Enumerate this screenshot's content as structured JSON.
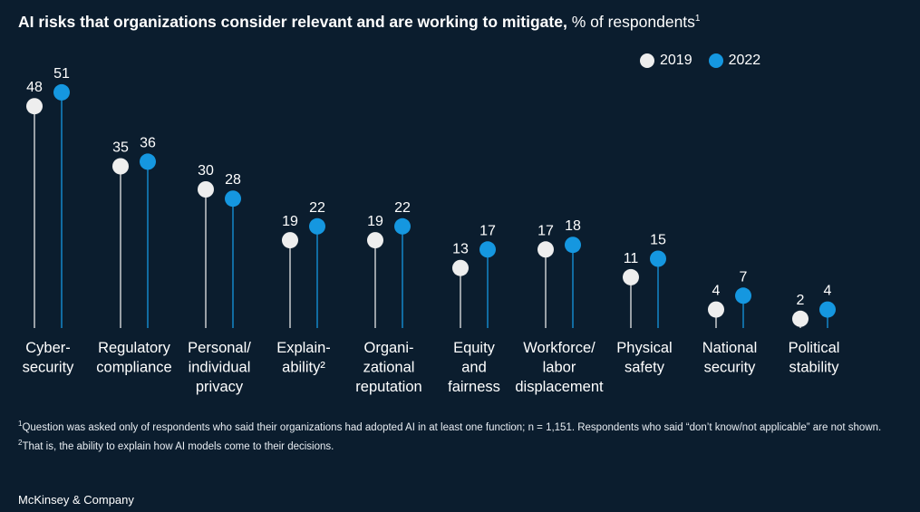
{
  "title": {
    "bold": "AI risks that organizations consider relevant and are working to mitigate,",
    "rest": "% of respondents",
    "sup": "1"
  },
  "colors": {
    "background": "#0b1d2e",
    "series_2019": "#eeeeee",
    "series_2022": "#1597e0"
  },
  "chart_data": {
    "type": "lollipop",
    "categories": [
      [
        "Cyber-",
        "security"
      ],
      [
        "Regulatory",
        "compliance"
      ],
      [
        "Personal/",
        "individual",
        "privacy"
      ],
      [
        "Explain-",
        "ability²"
      ],
      [
        "Organi-",
        "zational",
        "reputation"
      ],
      [
        "Equity",
        "and",
        "fairness"
      ],
      [
        "Workforce/",
        "labor",
        "displacement"
      ],
      [
        "Physical",
        "safety"
      ],
      [
        "National",
        "security"
      ],
      [
        "Political",
        "stability"
      ]
    ],
    "series": [
      {
        "name": "2019",
        "values": [
          48,
          35,
          30,
          19,
          19,
          13,
          17,
          11,
          4,
          2
        ]
      },
      {
        "name": "2022",
        "values": [
          51,
          36,
          28,
          22,
          22,
          17,
          18,
          15,
          7,
          4
        ]
      }
    ],
    "legend_position": "top-right",
    "grid": false
  },
  "footnotes": [
    {
      "sup": "1",
      "text": "Question was asked only of respondents who said their organizations had adopted AI in at least one function; n = 1,151. Respondents who said “don’t know/not applicable” are not shown."
    },
    {
      "sup": "2",
      "text": "That is, the ability to explain how AI models come to their decisions."
    }
  ],
  "brand": "McKinsey & Company"
}
